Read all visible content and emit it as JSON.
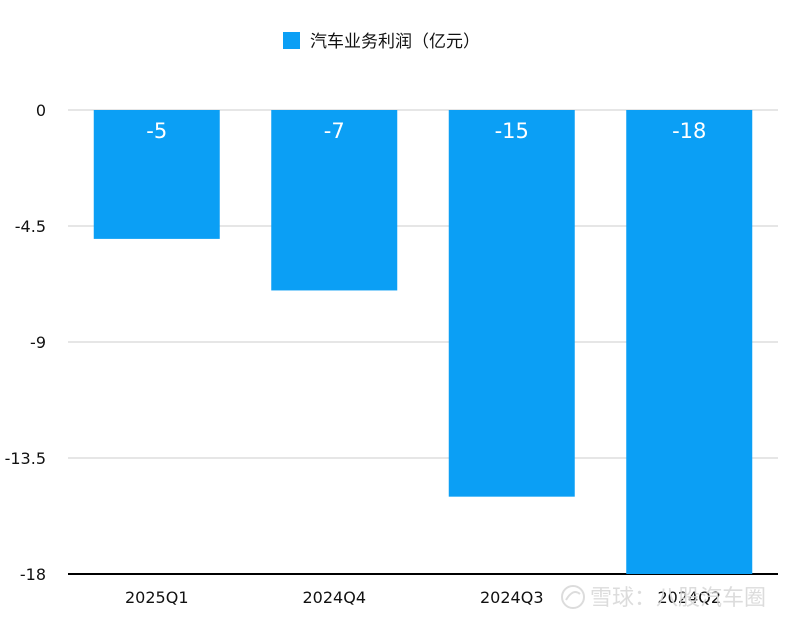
{
  "chart_data": {
    "type": "bar",
    "categories": [
      "2025Q1",
      "2024Q4",
      "2024Q3",
      "2024Q2"
    ],
    "series": [
      {
        "name": "汽车业务利润（亿元）",
        "values": [
          -5,
          -7,
          -15,
          -18
        ]
      }
    ],
    "ylim": [
      -18,
      0
    ],
    "yticks": [
      0,
      -4.5,
      -9,
      -13.5,
      -18
    ],
    "ytick_labels": [
      "0",
      "-4.5",
      "-9",
      "-13.5",
      "-18"
    ],
    "data_labels": [
      "-5",
      "-7",
      "-15",
      "-18"
    ],
    "grid": true,
    "legend_position": "top-center",
    "bar_color": "#0b9ff5",
    "axis_color": "#000000",
    "grid_color": "#cccccc"
  },
  "watermark": {
    "text": "雪球：八股汽车圈",
    "icon": "snowball-logo-icon"
  }
}
